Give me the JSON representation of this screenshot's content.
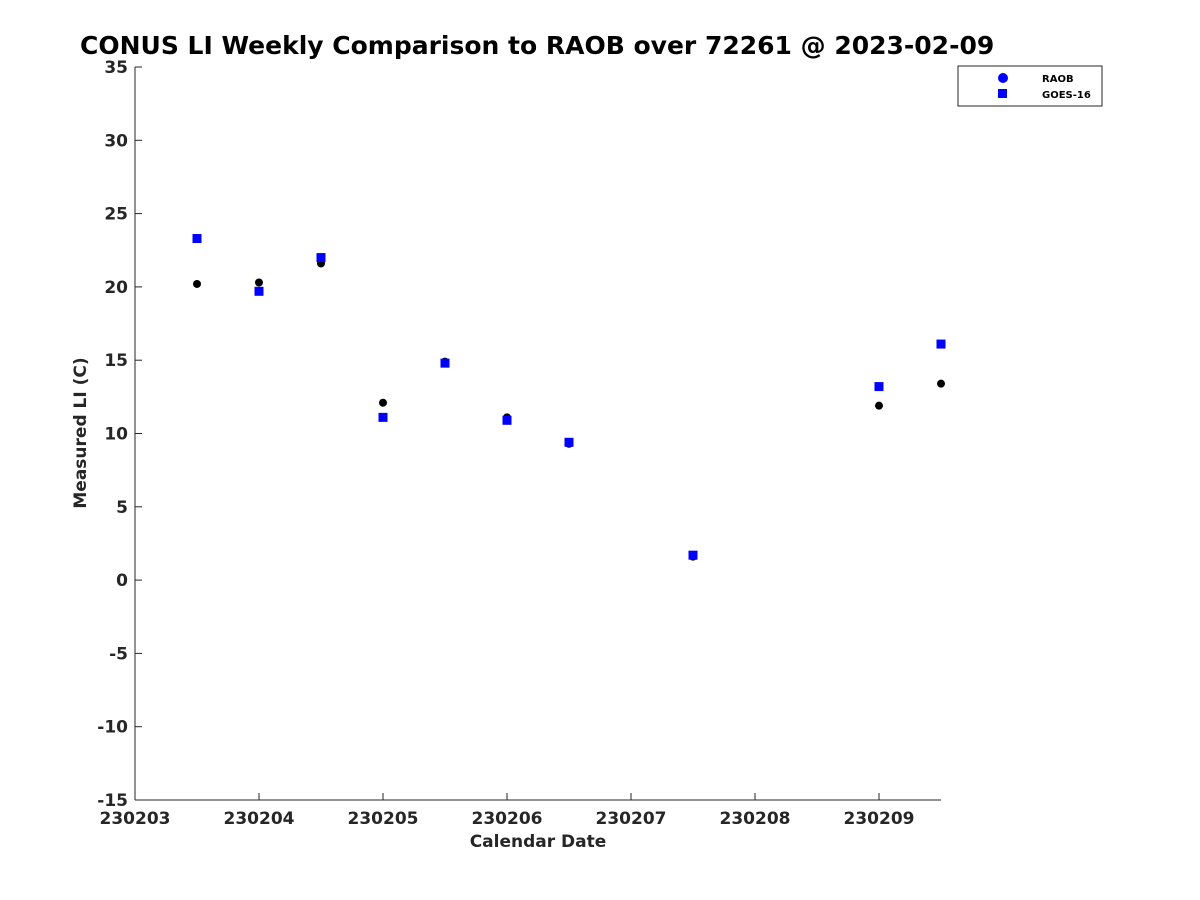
{
  "chart_data": {
    "type": "scatter",
    "title": "CONUS LI Weekly Comparison to RAOB over 72261 @ 2023-02-09",
    "xlabel": "Calendar Date",
    "ylabel": "Measured LI (C)",
    "xlim": [
      230203,
      230209.5
    ],
    "ylim": [
      -15,
      35
    ],
    "x_ticks": [
      230203,
      230204,
      230205,
      230206,
      230207,
      230208,
      230209
    ],
    "x_tick_labels": [
      "230203",
      "230204",
      "230205",
      "230206",
      "230207",
      "230208",
      "230209"
    ],
    "y_ticks": [
      -15,
      -10,
      -5,
      0,
      5,
      10,
      15,
      20,
      25,
      30,
      35
    ],
    "y_tick_labels": [
      "-15",
      "-10",
      "-5",
      "0",
      "5",
      "10",
      "15",
      "20",
      "25",
      "30",
      "35"
    ],
    "grid": false,
    "legend_position": "top-right",
    "series": [
      {
        "name": "RAOB",
        "marker": "circle",
        "legend_color": "#0000ff",
        "point_color": "#000000",
        "x": [
          230203.5,
          230204,
          230204.5,
          230205,
          230205.5,
          230206,
          230206.5,
          230207.5,
          230209,
          230209.5
        ],
        "y": [
          20.2,
          20.3,
          21.6,
          12.1,
          14.9,
          11.1,
          9.3,
          1.6,
          11.9,
          13.4
        ]
      },
      {
        "name": "GOES-16",
        "marker": "square",
        "legend_color": "#0000ff",
        "point_color": "#0000ff",
        "x": [
          230203.5,
          230204,
          230204.5,
          230205,
          230205.5,
          230206,
          230206.5,
          230207.5,
          230209,
          230209.5
        ],
        "y": [
          23.3,
          19.7,
          22.0,
          11.1,
          14.8,
          10.9,
          9.4,
          1.7,
          13.2,
          16.1
        ]
      }
    ]
  }
}
